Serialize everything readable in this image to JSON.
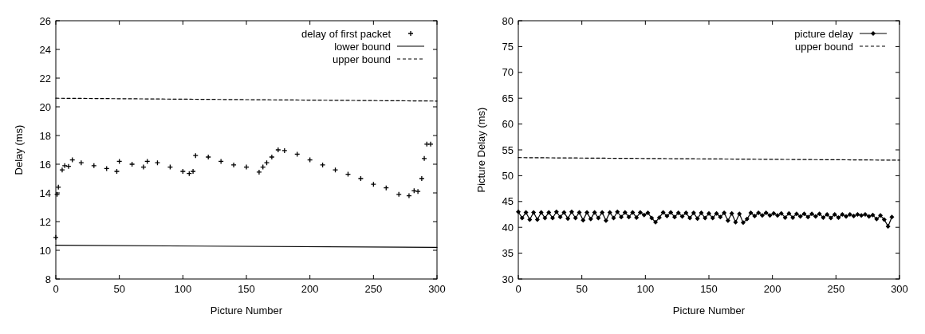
{
  "chart_data": [
    {
      "type": "scatter",
      "xlabel": "Picture Number",
      "ylabel": "Delay (ms)",
      "xlim": [
        0,
        300
      ],
      "ylim": [
        8,
        26
      ],
      "xticks": [
        0,
        50,
        100,
        150,
        200,
        250,
        300
      ],
      "yticks": [
        8,
        10,
        12,
        14,
        16,
        18,
        20,
        22,
        24,
        26
      ],
      "legend": "top right",
      "grid": false,
      "series": [
        {
          "name": "delay of first packet",
          "color": "#000000",
          "marker": "cross",
          "x": [
            0,
            1,
            2,
            5,
            7,
            10,
            13,
            20,
            30,
            40,
            48,
            50,
            60,
            69,
            72,
            80,
            90,
            100,
            105,
            108,
            110,
            120,
            130,
            140,
            150,
            160,
            163,
            166,
            170,
            175,
            180,
            190,
            200,
            210,
            220,
            230,
            240,
            250,
            260,
            270,
            278,
            282,
            285,
            288,
            290,
            292,
            295
          ],
          "values": [
            10.9,
            13.9,
            14.4,
            15.6,
            15.9,
            15.85,
            16.3,
            16.1,
            15.9,
            15.7,
            15.5,
            16.2,
            16.0,
            15.8,
            16.2,
            16.1,
            15.8,
            15.5,
            15.35,
            15.5,
            16.6,
            16.5,
            16.2,
            15.95,
            15.8,
            15.45,
            15.8,
            16.1,
            16.5,
            17.0,
            16.95,
            16.7,
            16.3,
            15.95,
            15.6,
            15.3,
            15.0,
            14.6,
            14.35,
            13.9,
            13.8,
            14.15,
            14.1,
            15.0,
            16.4,
            17.4,
            17.4
          ]
        },
        {
          "name": "lower bound",
          "color": "#000000",
          "type": "line",
          "marker": "none",
          "line_style": "solid",
          "x": [
            0,
            300
          ],
          "values": [
            10.35,
            10.2
          ]
        },
        {
          "name": "upper bound",
          "color": "#000000",
          "type": "line",
          "marker": "none",
          "line_style": "dashed",
          "x": [
            0,
            300
          ],
          "values": [
            20.6,
            20.4
          ]
        }
      ]
    },
    {
      "type": "line",
      "xlabel": "Picture Number",
      "ylabel": "Picture Delay (ms)",
      "xlim": [
        0,
        300
      ],
      "ylim": [
        30,
        80
      ],
      "xticks": [
        0,
        50,
        100,
        150,
        200,
        250,
        300
      ],
      "yticks": [
        30,
        35,
        40,
        45,
        50,
        55,
        60,
        65,
        70,
        75,
        80
      ],
      "legend": "top right",
      "grid": false,
      "series": [
        {
          "name": "picture delay",
          "color": "#000000",
          "marker": "diamond",
          "line_style": "solid",
          "x": [
            0,
            3,
            6,
            9,
            12,
            15,
            18,
            21,
            24,
            27,
            30,
            33,
            36,
            39,
            42,
            45,
            48,
            51,
            54,
            57,
            60,
            63,
            66,
            69,
            72,
            75,
            78,
            81,
            84,
            87,
            90,
            93,
            96,
            99,
            102,
            105,
            108,
            111,
            114,
            117,
            120,
            123,
            126,
            129,
            132,
            135,
            138,
            141,
            144,
            147,
            150,
            153,
            156,
            159,
            162,
            165,
            168,
            171,
            174,
            177,
            180,
            183,
            186,
            189,
            192,
            195,
            198,
            201,
            204,
            207,
            210,
            213,
            216,
            219,
            222,
            225,
            228,
            231,
            234,
            237,
            240,
            243,
            246,
            249,
            252,
            255,
            258,
            261,
            264,
            267,
            270,
            273,
            276,
            279,
            282,
            285,
            288,
            291,
            294
          ],
          "values": [
            43.0,
            41.8,
            42.9,
            41.5,
            42.9,
            41.5,
            42.9,
            41.8,
            42.9,
            41.8,
            43.0,
            42.0,
            42.9,
            41.7,
            43.0,
            41.8,
            42.9,
            41.4,
            42.9,
            41.6,
            42.9,
            41.8,
            42.9,
            41.3,
            42.9,
            41.8,
            43.0,
            42.0,
            42.9,
            42.0,
            42.9,
            41.9,
            42.9,
            42.4,
            42.8,
            41.8,
            41.0,
            41.9,
            42.9,
            42.2,
            42.9,
            42.0,
            42.8,
            42.1,
            42.8,
            41.8,
            42.8,
            41.7,
            42.8,
            41.8,
            42.7,
            41.8,
            42.7,
            42.0,
            42.8,
            41.3,
            42.7,
            41.0,
            42.6,
            40.9,
            41.6,
            42.8,
            42.2,
            42.8,
            42.3,
            42.8,
            42.3,
            42.7,
            42.3,
            42.7,
            41.9,
            42.7,
            41.9,
            42.6,
            42.1,
            42.6,
            42.0,
            42.6,
            42.1,
            42.6,
            41.9,
            42.5,
            41.8,
            42.5,
            41.9,
            42.5,
            42.1,
            42.5,
            42.2,
            42.5,
            42.3,
            42.5,
            42.1,
            42.4,
            41.6,
            42.3,
            41.5,
            40.2,
            42.0
          ]
        },
        {
          "name": "upper bound",
          "color": "#000000",
          "type": "line",
          "marker": "none",
          "line_style": "dashed",
          "x": [
            0,
            300
          ],
          "values": [
            53.5,
            53.0
          ]
        }
      ]
    }
  ]
}
